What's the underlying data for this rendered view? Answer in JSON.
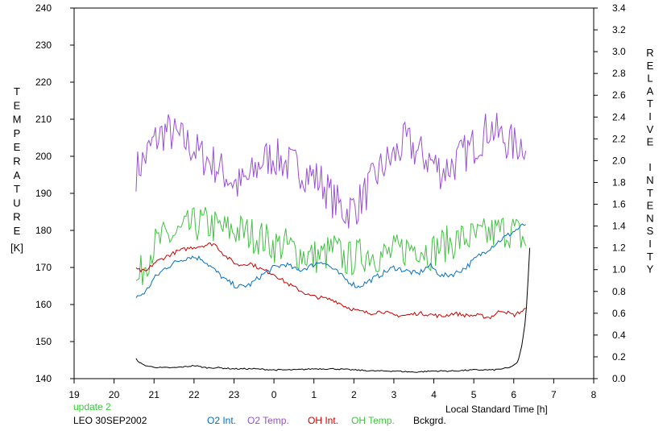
{
  "chart_data": {
    "type": "line",
    "xlabel": "Local Standard Time [h]",
    "x_ticks": [
      "19",
      "20",
      "21",
      "22",
      "23",
      "0",
      "1",
      "2",
      "3",
      "4",
      "5",
      "6",
      "7",
      "8"
    ],
    "xlim": [
      19,
      32
    ],
    "y_left_label": "TEMPERATURE",
    "y_left_unit": "[K]",
    "y_left_ticks": [
      "140",
      "150",
      "160",
      "170",
      "180",
      "190",
      "200",
      "210",
      "220",
      "230",
      "240"
    ],
    "ylim_left": [
      140,
      240
    ],
    "y_right_label": "RELATIVE INTENSITY",
    "y_right_ticks": [
      "0.0",
      "0.2",
      "0.4",
      "0.6",
      "0.8",
      "1.0",
      "1.2",
      "1.4",
      "1.6",
      "1.8",
      "2.0",
      "2.2",
      "2.4",
      "2.6",
      "2.8",
      "3.0",
      "3.2",
      "3.4"
    ],
    "ylim_right": [
      0,
      3.4
    ],
    "grid": false,
    "update_label": "update 2",
    "station_label": "LEO 30SEP2002",
    "series": [
      {
        "name": "O2 Int.",
        "axis": "right",
        "color": "#0070c0",
        "noise": 0.025,
        "x": [
          20.55,
          20.8,
          21.0,
          21.3,
          21.6,
          21.9,
          22.2,
          22.5,
          22.8,
          23.1,
          23.4,
          23.7,
          24.0,
          24.3,
          24.6,
          24.9,
          25.2,
          25.5,
          25.8,
          26.1,
          26.4,
          26.7,
          27.0,
          27.3,
          27.6,
          27.9,
          28.2,
          28.5,
          28.8,
          29.1,
          29.4,
          29.7,
          30.0,
          30.3
        ],
        "y": [
          0.74,
          0.8,
          0.92,
          1.02,
          1.08,
          1.12,
          1.1,
          1.0,
          0.9,
          0.84,
          0.86,
          0.95,
          1.02,
          1.05,
          0.99,
          1.03,
          1.08,
          1.0,
          0.91,
          0.84,
          0.9,
          0.96,
          1.02,
          0.99,
          0.96,
          1.04,
          0.94,
          0.96,
          1.02,
          1.12,
          1.2,
          1.28,
          1.35,
          1.42
        ]
      },
      {
        "name": "O2 Temp.",
        "axis": "left",
        "color": "#9a4fd0",
        "noise": 5.5,
        "x": [
          20.55,
          20.8,
          21.0,
          21.3,
          21.6,
          21.9,
          22.2,
          22.5,
          22.8,
          23.1,
          23.4,
          23.7,
          24.0,
          24.3,
          24.6,
          24.9,
          25.2,
          25.5,
          25.8,
          26.1,
          26.4,
          26.7,
          27.0,
          27.3,
          27.6,
          27.9,
          28.2,
          28.5,
          28.8,
          29.1,
          29.4,
          29.7,
          30.0,
          30.3
        ],
        "y": [
          196,
          200,
          204,
          207,
          205,
          203,
          200,
          198,
          195,
          192,
          194,
          199,
          200,
          198,
          197,
          195,
          193,
          188,
          185,
          187,
          192,
          197,
          200,
          204,
          201,
          199,
          196,
          198,
          201,
          204,
          208,
          205,
          203,
          204
        ]
      },
      {
        "name": "OH Int.",
        "axis": "right",
        "color": "#c80000",
        "noise": 0.018,
        "x": [
          20.55,
          20.8,
          21.0,
          21.3,
          21.6,
          21.9,
          22.2,
          22.5,
          22.8,
          23.1,
          23.4,
          23.7,
          24.0,
          24.3,
          24.6,
          24.9,
          25.2,
          25.5,
          25.8,
          26.1,
          26.4,
          26.7,
          27.0,
          27.3,
          27.6,
          27.9,
          28.2,
          28.5,
          28.8,
          29.1,
          29.4,
          29.7,
          30.0,
          30.3
        ],
        "y": [
          1.0,
          0.98,
          1.06,
          1.12,
          1.17,
          1.2,
          1.22,
          1.24,
          1.12,
          1.04,
          1.06,
          1.0,
          0.96,
          0.88,
          0.82,
          0.76,
          0.74,
          0.72,
          0.66,
          0.62,
          0.6,
          0.62,
          0.58,
          0.58,
          0.6,
          0.59,
          0.57,
          0.6,
          0.58,
          0.58,
          0.56,
          0.63,
          0.58,
          0.64
        ]
      },
      {
        "name": "OH Temp.",
        "axis": "left",
        "color": "#44c044",
        "noise": 5.0,
        "x": [
          20.55,
          20.8,
          21.0,
          21.3,
          21.6,
          21.9,
          22.2,
          22.5,
          22.8,
          23.1,
          23.4,
          23.7,
          24.0,
          24.3,
          24.6,
          24.9,
          25.2,
          25.5,
          25.8,
          26.1,
          26.4,
          26.7,
          27.0,
          27.3,
          27.6,
          27.9,
          28.2,
          28.5,
          28.8,
          29.1,
          29.4,
          29.7,
          30.0,
          30.3
        ],
        "y": [
          165,
          172,
          176,
          178,
          179,
          181,
          182,
          181,
          180,
          180,
          179,
          178,
          176,
          176,
          174,
          173,
          173,
          175,
          172,
          173,
          174,
          173,
          174,
          175,
          176,
          174,
          176,
          177,
          178,
          178,
          179,
          180,
          180,
          177
        ]
      },
      {
        "name": "Bckgrd.",
        "axis": "right",
        "color": "#000000",
        "noise": 0.006,
        "x": [
          20.55,
          20.7,
          20.9,
          21.2,
          21.5,
          21.8,
          22.0,
          22.3,
          22.6,
          23.0,
          23.5,
          24.0,
          24.5,
          25.0,
          25.5,
          26.0,
          26.5,
          27.0,
          27.5,
          28.0,
          28.5,
          29.0,
          29.5,
          29.9,
          30.1,
          30.2,
          30.3,
          30.35,
          30.4
        ],
        "y": [
          0.18,
          0.13,
          0.11,
          0.1,
          0.1,
          0.11,
          0.12,
          0.1,
          0.1,
          0.09,
          0.09,
          0.08,
          0.08,
          0.09,
          0.09,
          0.08,
          0.07,
          0.07,
          0.06,
          0.07,
          0.07,
          0.08,
          0.08,
          0.1,
          0.15,
          0.3,
          0.55,
          0.85,
          1.2
        ]
      }
    ]
  }
}
